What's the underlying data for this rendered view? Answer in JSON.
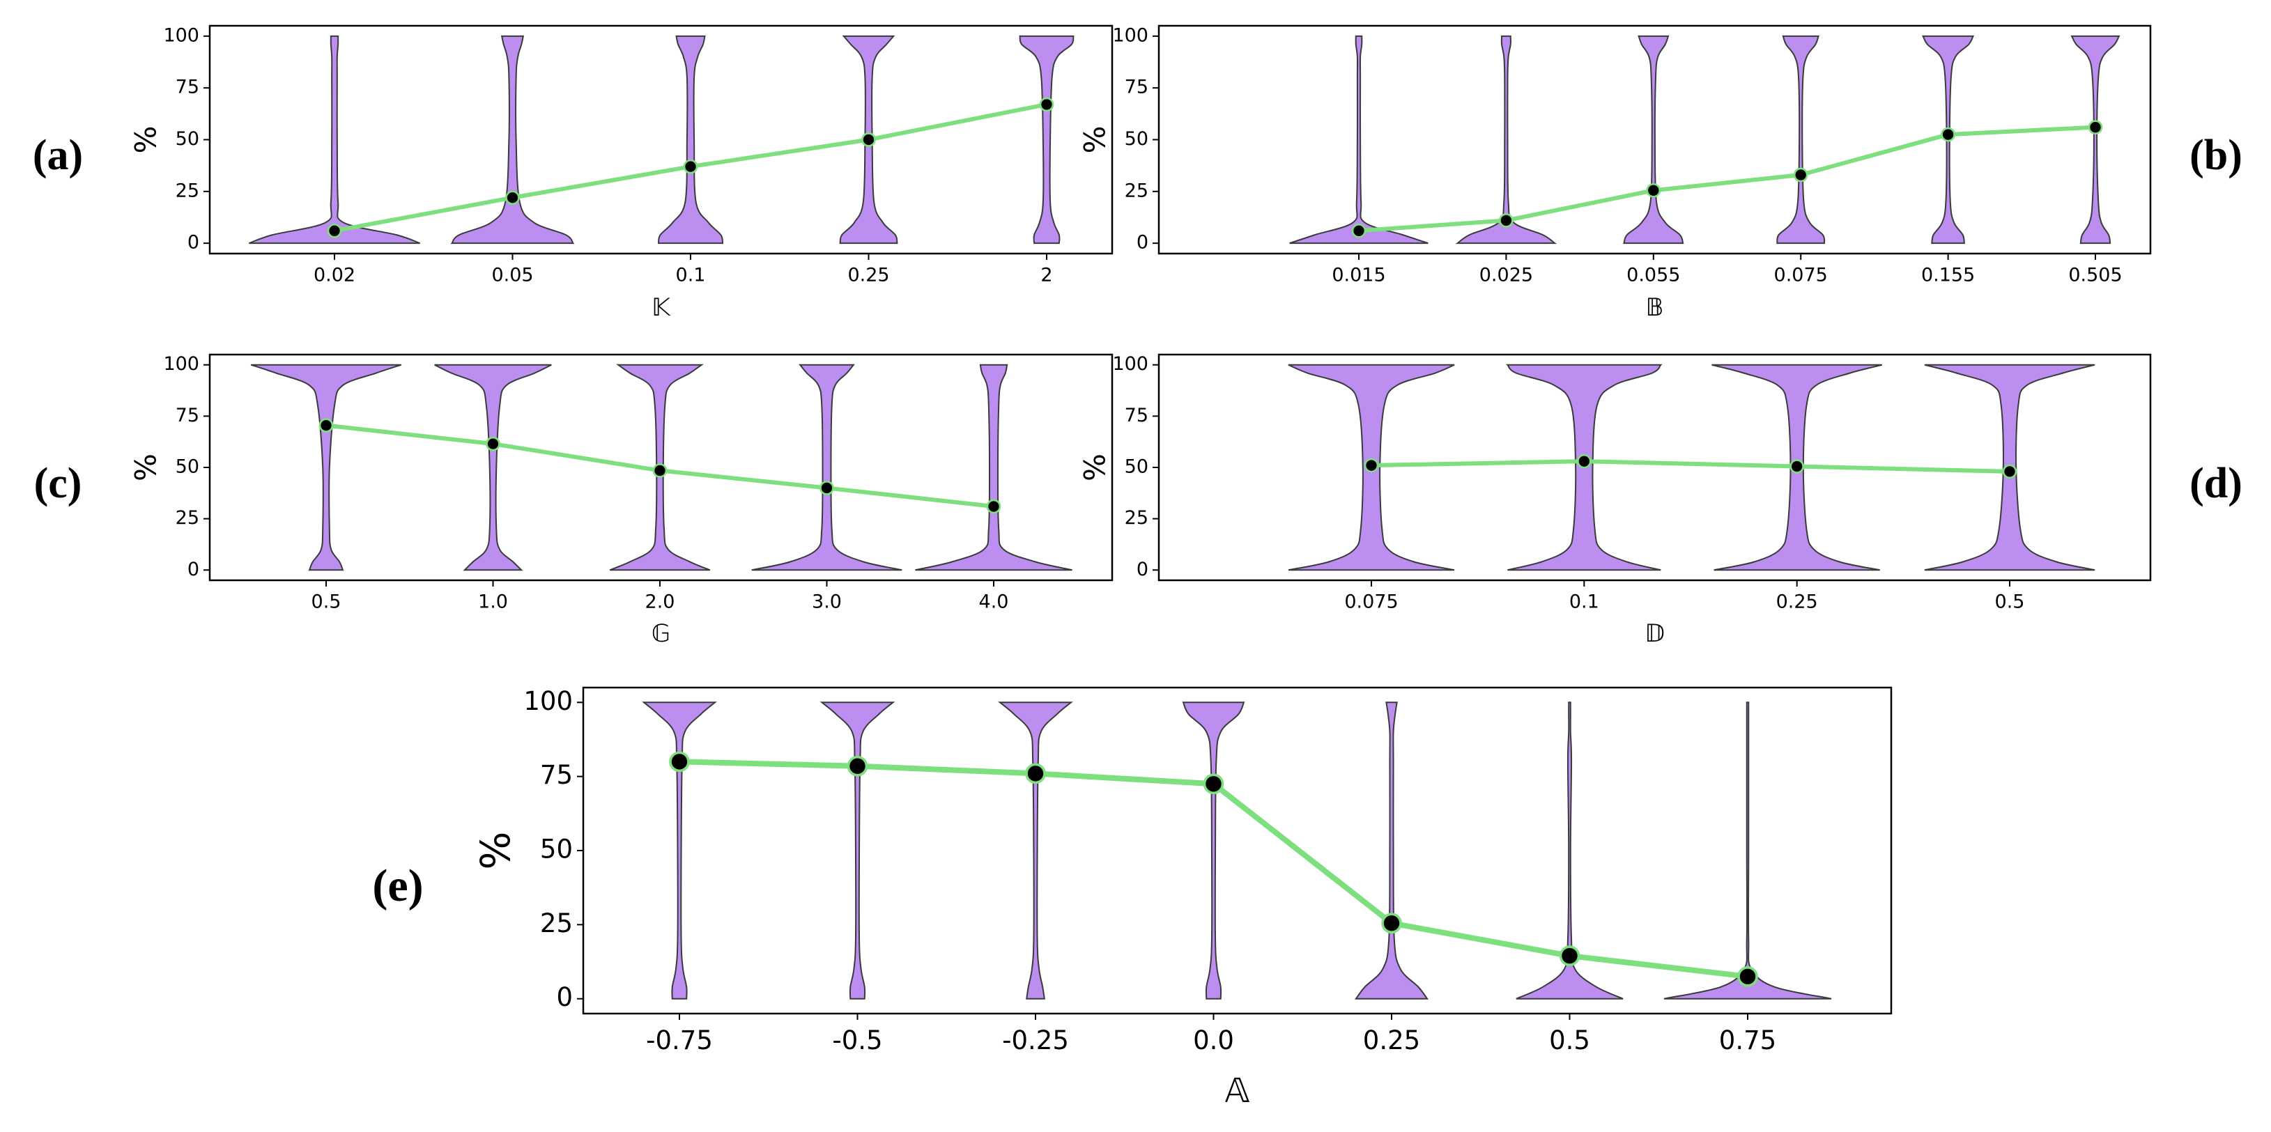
{
  "chart_data": [
    {
      "type": "violin",
      "panel_label": "(a)",
      "ylabel": "%",
      "xlabel": "𝕂",
      "categories": [
        "0.02",
        "0.05",
        "0.1",
        "0.25",
        "2"
      ],
      "values": [
        6,
        22,
        37,
        50,
        67
      ],
      "ylim": [
        -5,
        105
      ],
      "yticks": [
        0,
        25,
        50,
        75,
        100
      ],
      "violin_y": [
        0,
        4,
        10,
        20,
        50,
        80,
        90,
        96,
        100
      ],
      "violins": [
        [
          0.48,
          0.35,
          0.05,
          0.02,
          0.015,
          0.015,
          0.015,
          0.02,
          0.02
        ],
        [
          0.34,
          0.3,
          0.12,
          0.04,
          0.02,
          0.02,
          0.03,
          0.05,
          0.06
        ],
        [
          0.18,
          0.17,
          0.1,
          0.03,
          0.02,
          0.02,
          0.04,
          0.07,
          0.08
        ],
        [
          0.16,
          0.15,
          0.08,
          0.03,
          0.02,
          0.02,
          0.04,
          0.1,
          0.14
        ],
        [
          0.07,
          0.07,
          0.04,
          0.02,
          0.02,
          0.03,
          0.06,
          0.14,
          0.15
        ]
      ],
      "violin_color": "#bb8ef0",
      "line_color": "#7ddf7d",
      "marker_color": "#000000"
    },
    {
      "type": "violin",
      "panel_label": "(b)",
      "ylabel": "%",
      "xlabel": "𝔹",
      "categories": [
        "0.015",
        "0.025",
        "0.055",
        "0.075",
        "0.155",
        "0.505"
      ],
      "values": [
        6,
        11,
        25.5,
        33,
        52.5,
        56
      ],
      "ylim": [
        -5,
        105
      ],
      "yticks": [
        0,
        25,
        50,
        75,
        100
      ],
      "violin_y": [
        0,
        4,
        10,
        20,
        50,
        80,
        90,
        96,
        100
      ],
      "violins": [
        [
          0.47,
          0.3,
          0.04,
          0.015,
          0.01,
          0.01,
          0.01,
          0.02,
          0.02
        ],
        [
          0.33,
          0.25,
          0.05,
          0.015,
          0.01,
          0.01,
          0.015,
          0.03,
          0.03
        ],
        [
          0.2,
          0.18,
          0.08,
          0.02,
          0.01,
          0.015,
          0.03,
          0.08,
          0.1
        ],
        [
          0.16,
          0.15,
          0.06,
          0.02,
          0.01,
          0.015,
          0.04,
          0.1,
          0.12
        ],
        [
          0.11,
          0.1,
          0.04,
          0.015,
          0.01,
          0.02,
          0.05,
          0.14,
          0.17
        ],
        [
          0.1,
          0.09,
          0.04,
          0.02,
          0.01,
          0.02,
          0.05,
          0.13,
          0.16
        ]
      ],
      "violin_color": "#bb8ef0",
      "line_color": "#7ddf7d",
      "marker_color": "#000000"
    },
    {
      "type": "violin",
      "panel_label": "(c)",
      "ylabel": "%",
      "xlabel": "𝔾",
      "categories": [
        "0.5",
        "1.0",
        "2.0",
        "3.0",
        "4.0"
      ],
      "values": [
        70.5,
        61.5,
        48.5,
        40,
        31
      ],
      "ylim": [
        -5,
        105
      ],
      "yticks": [
        0,
        25,
        50,
        75,
        100
      ],
      "violin_y": [
        0,
        4,
        10,
        20,
        50,
        80,
        90,
        96,
        100
      ],
      "violins": [
        [
          0.1,
          0.08,
          0.03,
          0.02,
          0.02,
          0.05,
          0.1,
          0.3,
          0.45
        ],
        [
          0.17,
          0.12,
          0.04,
          0.02,
          0.02,
          0.04,
          0.08,
          0.25,
          0.35
        ],
        [
          0.3,
          0.18,
          0.05,
          0.025,
          0.02,
          0.03,
          0.06,
          0.18,
          0.25
        ],
        [
          0.45,
          0.22,
          0.06,
          0.03,
          0.025,
          0.03,
          0.05,
          0.12,
          0.16
        ],
        [
          0.47,
          0.25,
          0.06,
          0.03,
          0.025,
          0.03,
          0.04,
          0.07,
          0.08
        ]
      ],
      "violin_color": "#bb8ef0",
      "line_color": "#7ddf7d",
      "marker_color": "#000000"
    },
    {
      "type": "violin",
      "panel_label": "(d)",
      "ylabel": "%",
      "xlabel": "𝔻",
      "categories": [
        "0.075",
        "0.1",
        "0.25",
        "0.5"
      ],
      "values": [
        51,
        53,
        50.5,
        48
      ],
      "ylim": [
        -5,
        105
      ],
      "yticks": [
        0,
        25,
        50,
        75,
        100
      ],
      "violin_y": [
        0,
        4,
        10,
        20,
        50,
        80,
        90,
        96,
        100
      ],
      "violins": [
        [
          0.39,
          0.2,
          0.08,
          0.05,
          0.04,
          0.06,
          0.12,
          0.3,
          0.39
        ],
        [
          0.36,
          0.2,
          0.08,
          0.05,
          0.04,
          0.06,
          0.14,
          0.32,
          0.36
        ],
        [
          0.39,
          0.2,
          0.08,
          0.045,
          0.03,
          0.045,
          0.09,
          0.25,
          0.4
        ],
        [
          0.4,
          0.22,
          0.09,
          0.05,
          0.03,
          0.04,
          0.08,
          0.25,
          0.4
        ]
      ],
      "violin_color": "#bb8ef0",
      "line_color": "#7ddf7d",
      "marker_color": "#000000"
    },
    {
      "type": "violin",
      "panel_label": "(e)",
      "ylabel": "%",
      "xlabel": "𝔸",
      "categories": [
        "-0.75",
        "-0.5",
        "-0.25",
        "0.0",
        "0.25",
        "0.5",
        "0.75"
      ],
      "values": [
        80,
        78.5,
        76,
        72.5,
        25.5,
        14.5,
        7.5
      ],
      "ylim": [
        -5,
        105
      ],
      "yticks": [
        0,
        25,
        50,
        75,
        100
      ],
      "violin_y": [
        0,
        4,
        10,
        20,
        50,
        80,
        90,
        96,
        100
      ],
      "violins": [
        [
          0.04,
          0.04,
          0.02,
          0.01,
          0.01,
          0.015,
          0.03,
          0.12,
          0.2
        ],
        [
          0.04,
          0.04,
          0.02,
          0.01,
          0.01,
          0.015,
          0.03,
          0.12,
          0.2
        ],
        [
          0.05,
          0.04,
          0.02,
          0.01,
          0.01,
          0.015,
          0.03,
          0.12,
          0.2
        ],
        [
          0.04,
          0.04,
          0.02,
          0.01,
          0.01,
          0.015,
          0.04,
          0.14,
          0.17
        ],
        [
          0.2,
          0.15,
          0.05,
          0.015,
          0.01,
          0.01,
          0.01,
          0.02,
          0.03
        ],
        [
          0.3,
          0.15,
          0.03,
          0.01,
          0.005,
          0.01,
          0.005,
          0.005,
          0.005
        ],
        [
          0.47,
          0.15,
          0.02,
          0.005,
          0.005,
          0.005,
          0.005,
          0.005,
          0.005
        ]
      ],
      "violin_color": "#bb8ef0",
      "line_color": "#7ddf7d",
      "marker_color": "#000000"
    }
  ]
}
